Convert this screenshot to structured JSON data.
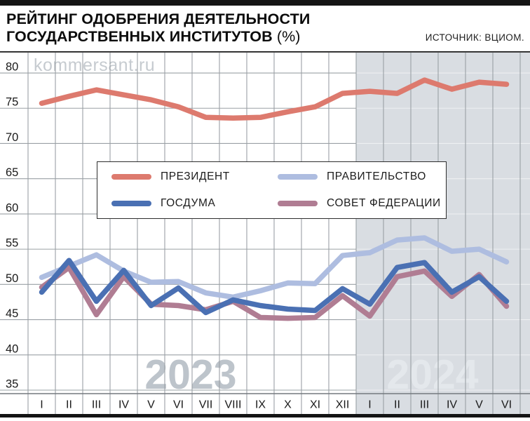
{
  "header": {
    "title_line1": "РЕЙТИНГ ОДОБРЕНИЯ ДЕЯТЕЛЬНОСТИ",
    "title_line2": "ГОСУДАРСТВЕННЫХ ИНСТИТУТОВ",
    "title_suffix": "(%)",
    "source": "ИСТОЧНИК: ВЦИОМ."
  },
  "watermarks": {
    "site": "kommersant.ru",
    "year_left": "2023",
    "year_right": "2024"
  },
  "colors": {
    "president": "#dd7a6e",
    "government": "#aebde0",
    "duma": "#4a70b3",
    "sovfed": "#b07d93",
    "band_2024": "#d9dde2",
    "gridline": "#9aa0a5",
    "gridline_on_band": "#eef0f2",
    "axis_line": "#74797e",
    "tick_text": "#1a1a1a",
    "watermark_site": "#c6cbd0",
    "watermark_2023": "#bdc4cb",
    "watermark_2024": "#e4e8ec"
  },
  "legend": {
    "items": [
      {
        "label": "ПРЕЗИДЕНТ"
      },
      {
        "label": "ПРАВИТЕЛЬСТВО"
      },
      {
        "label": "ГОСДУМА"
      },
      {
        "label": "СОВЕТ ФЕДЕРАЦИИ"
      }
    ]
  },
  "axis": {
    "y_ticks": [
      80,
      75,
      70,
      65,
      60,
      55,
      50,
      45,
      40,
      35
    ],
    "x_labels": [
      "I",
      "II",
      "III",
      "IV",
      "V",
      "VI",
      "VII",
      "VIII",
      "IX",
      "X",
      "XI",
      "XII",
      "I",
      "II",
      "III",
      "IV",
      "V",
      "VI"
    ]
  },
  "chart_data": {
    "type": "line",
    "title": "РЕЙТИНГ ОДОБРЕНИЯ ДЕЯТЕЛЬНОСТИ ГОСУДАРСТВЕННЫХ ИНСТИТУТОВ (%)",
    "source": "ВЦИОМ",
    "categories": [
      "2023-I",
      "2023-II",
      "2023-III",
      "2023-IV",
      "2023-V",
      "2023-VI",
      "2023-VII",
      "2023-VIII",
      "2023-IX",
      "2023-X",
      "2023-XI",
      "2023-XII",
      "2024-I",
      "2024-II",
      "2024-III",
      "2024-IV",
      "2024-V",
      "2024-VI"
    ],
    "ylim": [
      35,
      83
    ],
    "grid": true,
    "legend_position": "inside-upper-middle",
    "highlight_region": {
      "label": "2024",
      "from_category_index": 12,
      "to_category_index": 17
    },
    "series": [
      {
        "name": "ПРЕЗИДЕНТ",
        "color": "#dd7a6e",
        "values": [
          75.7,
          76.7,
          77.6,
          76.9,
          76.2,
          75.2,
          73.7,
          73.6,
          73.7,
          74.5,
          75.2,
          77.1,
          77.4,
          77.1,
          79.0,
          77.7,
          78.7,
          78.4
        ]
      },
      {
        "name": "ПРАВИТЕЛЬСТВО",
        "color": "#aebde0",
        "values": [
          51.0,
          52.6,
          54.2,
          51.9,
          50.3,
          50.4,
          48.8,
          48.2,
          49.1,
          50.2,
          50.1,
          54.1,
          54.5,
          56.3,
          56.6,
          54.7,
          55.0,
          53.2
        ]
      },
      {
        "name": "ГОСДУМА",
        "color": "#4a70b3",
        "values": [
          48.9,
          53.4,
          47.6,
          52.0,
          47.0,
          49.5,
          46.0,
          47.8,
          47.0,
          46.5,
          46.3,
          49.4,
          47.2,
          52.4,
          53.1,
          48.9,
          51.1,
          47.6
        ]
      },
      {
        "name": "СОВЕТ ФЕДЕРАЦИИ",
        "color": "#b07d93",
        "values": [
          49.6,
          52.4,
          45.7,
          51.1,
          47.2,
          47.0,
          46.4,
          47.6,
          45.3,
          45.2,
          45.3,
          48.4,
          45.5,
          51.1,
          51.9,
          48.3,
          51.4,
          46.9
        ]
      }
    ]
  }
}
